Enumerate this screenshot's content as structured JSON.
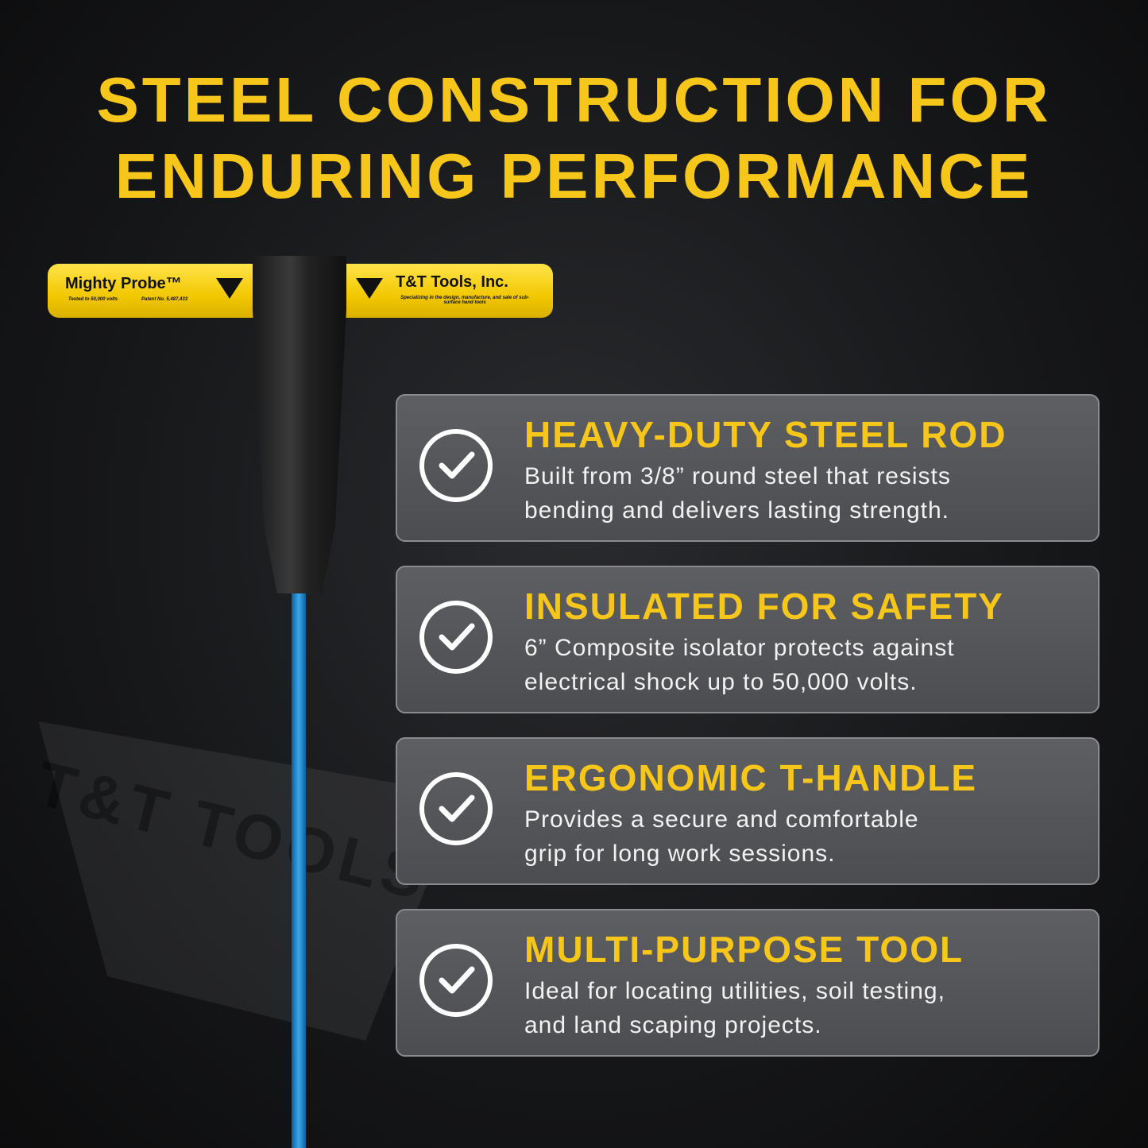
{
  "headline": {
    "line1": "STEEL CONSTRUCTION FOR",
    "line2": "ENDURING PERFORMANCE"
  },
  "colors": {
    "accent": "#f7c61b",
    "card": "#555659",
    "rod": "#2b9be0"
  },
  "product": {
    "left_label": "Mighty Probe™",
    "left_sub1": "Tested to 50,000 volts",
    "left_sub2": "Patent No. 5,487,433",
    "right_label": "T&T Tools, Inc.",
    "right_sub": "Specializing in the design, manufacture, and sale of sub-surface hand tools"
  },
  "watermark": "T&T TOOLS",
  "features": [
    {
      "icon": "check-circle-icon",
      "title": "HEAVY-DUTY STEEL ROD",
      "text": "Built from 3/8” round steel that resists\nbending and delivers lasting strength."
    },
    {
      "icon": "check-circle-icon",
      "title": "INSULATED FOR SAFETY",
      "text": "6” Composite isolator protects against\nelectrical shock up to 50,000 volts."
    },
    {
      "icon": "check-circle-icon",
      "title": "ERGONOMIC T-HANDLE",
      "text": "Provides a secure and comfortable\ngrip for long work sessions."
    },
    {
      "icon": "check-circle-icon",
      "title": "MULTI-PURPOSE TOOL",
      "text": "Ideal for locating utilities, soil testing,\nand land scaping projects."
    }
  ]
}
